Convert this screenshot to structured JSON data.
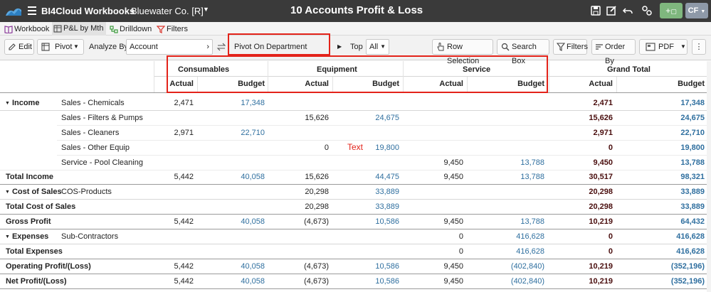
{
  "titlebar": {
    "app_name": "BI4Cloud Workbooks",
    "company": "Bluewater Co. [R]",
    "report_title": "10 Accounts Profit & Loss",
    "user_initials": "CF",
    "add_label": "+"
  },
  "tabs": [
    {
      "label": "Workbook",
      "icon": "book-icon"
    },
    {
      "label": "P&L by Mth",
      "icon": "table-icon",
      "active": true
    },
    {
      "label": "Drilldown",
      "icon": "drilldown-icon"
    },
    {
      "label": "Filters",
      "icon": "filter-icon"
    }
  ],
  "toolbar": {
    "edit_label": "Edit",
    "pivot_label": "Pivot",
    "analyze_by_label": "Analyze By",
    "analyze_by_value": "Account",
    "pivot_on_label": "Pivot On",
    "pivot_on_value": "Department",
    "top_label": "Top",
    "top_value": "All",
    "row_selection_label": "Row Selection",
    "search_box_label": "Search Box",
    "filters_label": "Filters",
    "order_by_label": "Order By",
    "pdf_label": "PDF",
    "more_label": "⋮"
  },
  "table": {
    "groups": [
      "Consumables",
      "Equipment",
      "Service",
      "Grand Total"
    ],
    "sub_actual": "Actual",
    "sub_budget": "Budget",
    "rows": [
      {
        "section": "Income",
        "label": "Sales - Chemicals",
        "c_a": "2,471",
        "c_b": "17,348",
        "e_a": "",
        "e_b": "",
        "s_a": "",
        "s_b": "",
        "g_a": "2,471",
        "g_b": "17,348"
      },
      {
        "section": "",
        "label": "Sales - Filters & Pumps",
        "c_a": "",
        "c_b": "",
        "e_a": "15,626",
        "e_b": "24,675",
        "s_a": "",
        "s_b": "",
        "g_a": "15,626",
        "g_b": "24,675"
      },
      {
        "section": "",
        "label": "Sales - Cleaners",
        "c_a": "2,971",
        "c_b": "22,710",
        "e_a": "",
        "e_b": "",
        "s_a": "",
        "s_b": "",
        "g_a": "2,971",
        "g_b": "22,710"
      },
      {
        "section": "",
        "label": "Sales - Other Equip",
        "c_a": "",
        "c_b": "",
        "e_a": "0",
        "e_b": "19,800",
        "s_a": "",
        "s_b": "",
        "g_a": "0",
        "g_b": "19,800"
      },
      {
        "section": "",
        "label": "Service - Pool Cleaning",
        "c_a": "",
        "c_b": "",
        "e_a": "",
        "e_b": "",
        "s_a": "9,450",
        "s_b": "13,788",
        "g_a": "9,450",
        "g_b": "13,788"
      },
      {
        "section": "Total Income",
        "label": "",
        "total": true,
        "c_a": "5,442",
        "c_b": "40,058",
        "e_a": "15,626",
        "e_b": "44,475",
        "s_a": "9,450",
        "s_b": "13,788",
        "g_a": "30,517",
        "g_b": "98,321"
      },
      {
        "section": "Cost of Sales",
        "label": "COS-Products",
        "c_a": "",
        "c_b": "",
        "e_a": "20,298",
        "e_b": "33,889",
        "s_a": "",
        "s_b": "",
        "g_a": "20,298",
        "g_b": "33,889"
      },
      {
        "section": "Total Cost of Sales",
        "label": "",
        "total": true,
        "c_a": "",
        "c_b": "",
        "e_a": "20,298",
        "e_b": "33,889",
        "s_a": "",
        "s_b": "",
        "g_a": "20,298",
        "g_b": "33,889"
      },
      {
        "section": "Gross Profit",
        "label": "",
        "total": true,
        "c_a": "5,442",
        "c_b": "40,058",
        "e_a": "(4,673)",
        "e_b": "10,586",
        "s_a": "9,450",
        "s_b": "13,788",
        "g_a": "10,219",
        "g_b": "64,432"
      },
      {
        "section": "Expenses",
        "label": "Sub-Contractors",
        "c_a": "",
        "c_b": "",
        "e_a": "",
        "e_b": "",
        "s_a": "0",
        "s_b": "416,628",
        "g_a": "0",
        "g_b": "416,628"
      },
      {
        "section": "Total Expenses",
        "label": "",
        "total": true,
        "c_a": "",
        "c_b": "",
        "e_a": "",
        "e_b": "",
        "s_a": "0",
        "s_b": "416,628",
        "g_a": "0",
        "g_b": "416,628"
      },
      {
        "section": "Operating Profit/(Loss)",
        "label": "",
        "total": true,
        "c_a": "5,442",
        "c_b": "40,058",
        "e_a": "(4,673)",
        "e_b": "10,586",
        "s_a": "9,450",
        "s_b": "(402,840)",
        "g_a": "10,219",
        "g_b": "(352,196)"
      },
      {
        "section": "Net Profit/(Loss)",
        "label": "",
        "total": true,
        "c_a": "5,442",
        "c_b": "40,058",
        "e_a": "(4,673)",
        "e_b": "10,586",
        "s_a": "9,450",
        "s_b": "(402,840)",
        "g_a": "10,219",
        "g_b": "(352,196)"
      }
    ]
  },
  "annotation_text": "Text",
  "colors": {
    "titlebar": "#3a3a3a",
    "budget_blue": "#2f6f9f",
    "highlight_red": "#e3231a",
    "add_green": "#7fb77e"
  }
}
